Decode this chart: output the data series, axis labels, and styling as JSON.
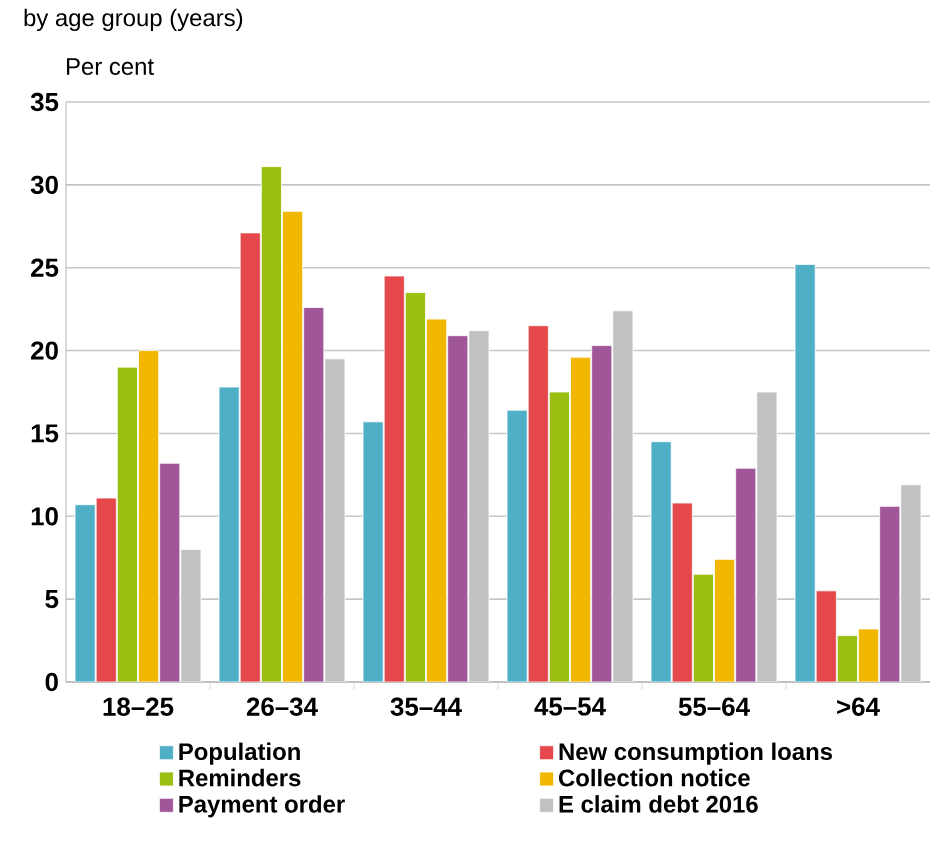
{
  "chart_data": {
    "type": "bar",
    "title": "by age group (years)",
    "ylabel": "Per cent",
    "categories": [
      "18–25",
      "26–34",
      "35–44",
      "45–54",
      "55–64",
      ">64"
    ],
    "series": [
      {
        "name": "Population",
        "color": "#4fafc6",
        "values": [
          10.7,
          17.8,
          15.7,
          16.4,
          14.5,
          25.2
        ]
      },
      {
        "name": "New consumption loans",
        "color": "#e5474b",
        "values": [
          11.1,
          27.1,
          24.5,
          21.5,
          10.8,
          5.5
        ]
      },
      {
        "name": "Reminders",
        "color": "#9abf12",
        "values": [
          19.0,
          31.1,
          23.5,
          17.5,
          6.5,
          2.8
        ]
      },
      {
        "name": "Collection notice",
        "color": "#f2b700",
        "values": [
          20.0,
          28.4,
          21.9,
          19.6,
          7.4,
          3.2
        ]
      },
      {
        "name": "Payment order",
        "color": "#a0579a",
        "values": [
          13.2,
          22.6,
          20.9,
          20.3,
          12.9,
          10.6
        ]
      },
      {
        "name": "E claim debt 2016",
        "color": "#c0c1c3",
        "values": [
          8.0,
          19.5,
          21.2,
          22.4,
          17.5,
          11.9
        ]
      }
    ],
    "ylim": [
      0,
      35
    ],
    "yticks": [
      0,
      5,
      10,
      15,
      20,
      25,
      30,
      35
    ],
    "grid": "y",
    "legend": "bottom"
  }
}
